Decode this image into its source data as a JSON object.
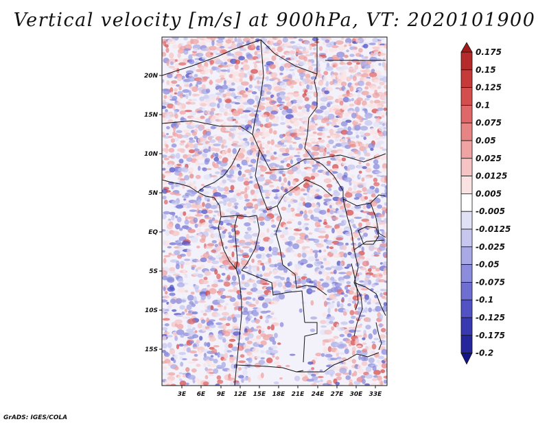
{
  "title": "Vertical velocity [m/s] at 900hPa, VT: 2020101900",
  "footer": "GrADS: IGES/COLA",
  "map": {
    "lat_labels": [
      "20N",
      "15N",
      "10N",
      "5N",
      "EQ",
      "5S",
      "10S",
      "15S"
    ],
    "lon_labels": [
      "3E",
      "6E",
      "9E",
      "12E",
      "15E",
      "18E",
      "21E",
      "24E",
      "27E",
      "30E",
      "33E"
    ]
  },
  "colorbar": {
    "labels": [
      "0.175",
      "0.15",
      "0.125",
      "0.1",
      "0.075",
      "0.05",
      "0.025",
      "0.0125",
      "0.005",
      "-0.005",
      "-0.0125",
      "-0.025",
      "-0.05",
      "-0.075",
      "-0.1",
      "-0.125",
      "-0.175",
      "-0.2"
    ],
    "colors": [
      "#a01c1c",
      "#b52a2a",
      "#c63a3a",
      "#d54e4e",
      "#df6868",
      "#e78585",
      "#efa3a3",
      "#f6c4c4",
      "#fbe2e2",
      "#ffffff",
      "#e1e1f6",
      "#c6c6ef",
      "#a9a9e6",
      "#8c8cdc",
      "#6f6fd2",
      "#5252c4",
      "#3838b0",
      "#25259c",
      "#14148a"
    ]
  }
}
